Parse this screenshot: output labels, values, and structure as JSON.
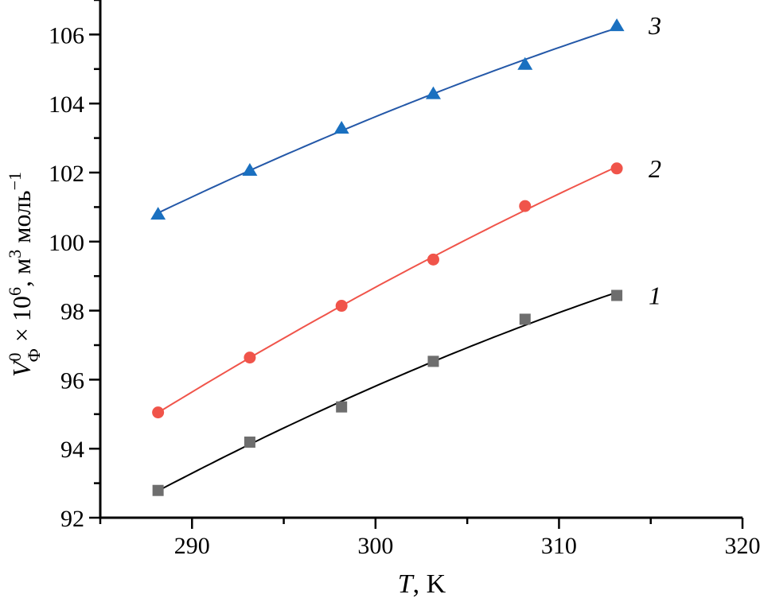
{
  "chart_data": {
    "type": "scatter",
    "xlabel_italic": "T",
    "xlabel_rest": ", K",
    "ylabel_V": "V",
    "ylabel_sup0": "0",
    "ylabel_subPhi": "Ф",
    "ylabel_mid": " × 10",
    "ylabel_sup6": "6",
    "ylabel_unit": ", м",
    "ylabel_sup3": "3",
    "ylabel_unit2": " моль",
    "ylabel_supm1": "−1",
    "xlim": [
      285,
      320
    ],
    "ylim": [
      92,
      107
    ],
    "xticks": [
      "290",
      "300",
      "310",
      "320"
    ],
    "xtick_values": [
      290,
      300,
      310,
      320
    ],
    "yticks": [
      "92",
      "94",
      "96",
      "98",
      "100",
      "102",
      "104",
      "106"
    ],
    "ytick_values": [
      92,
      94,
      96,
      98,
      100,
      102,
      104,
      106
    ],
    "grid": false,
    "series": [
      {
        "name": "1",
        "marker": "square",
        "color": "#6e6e6e",
        "line_color": "#000000",
        "x": [
          288.15,
          293.15,
          298.15,
          303.15,
          308.15,
          313.15
        ],
        "y": [
          92.79,
          94.19,
          95.21,
          96.53,
          97.75,
          98.44
        ]
      },
      {
        "name": "2",
        "marker": "circle",
        "color": "#f0544a",
        "line_color": "#f0544a",
        "x": [
          288.15,
          293.15,
          298.15,
          303.15,
          308.15,
          313.15
        ],
        "y": [
          95.05,
          96.64,
          98.14,
          99.48,
          101.03,
          102.12
        ]
      },
      {
        "name": "3",
        "marker": "triangle",
        "color": "#1a70c0",
        "line_color": "#2458a8",
        "x": [
          288.15,
          293.15,
          298.15,
          303.15,
          308.15,
          313.15
        ],
        "y": [
          100.8,
          102.07,
          103.29,
          104.29,
          105.14,
          106.26
        ]
      }
    ]
  }
}
